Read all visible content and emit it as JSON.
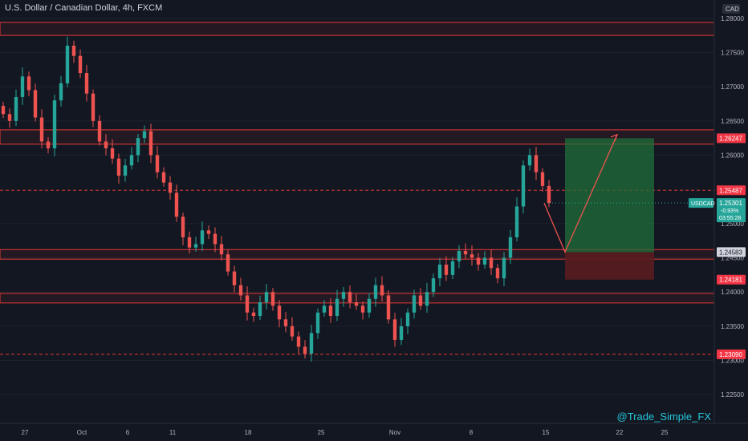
{
  "header": {
    "title": "U.S. Dollar / Canadian Dollar, 4h, FXCM"
  },
  "currency": "CAD",
  "watermark": "@Trade_Simple_FX",
  "colors": {
    "background": "#131722",
    "axis_text": "#b2b5be",
    "up_candle": "#26a69a",
    "down_candle": "#ef5350",
    "zone_line": "#e53935",
    "target_zone": "#1f6f3a",
    "stop_zone": "#5a1c1f",
    "current_badge": "#26a69a",
    "level_badge": "#f23645"
  },
  "price_axis": {
    "ticks": [
      "1.28000",
      "1.27500",
      "1.27000",
      "1.26500",
      "1.26000",
      "1.25000",
      "1.24500",
      "1.24000",
      "1.23500",
      "1.23000",
      "1.22500"
    ],
    "range": [
      1.2235,
      1.2815
    ]
  },
  "time_axis": {
    "labels": [
      "27",
      "Oct",
      "6",
      "11",
      "18",
      "25",
      "Nov",
      "8",
      "15",
      "22",
      "25"
    ]
  },
  "levels": [
    {
      "label": "1.26247",
      "value": 1.26247,
      "style": "solid",
      "badge": "red"
    },
    {
      "label": "1.25487",
      "value": 1.25487,
      "style": "dashed",
      "badge": "red"
    },
    {
      "label": "1.24583",
      "value": 1.24583,
      "style": "solid",
      "badge": "grey"
    },
    {
      "label": "1.24181",
      "value": 1.24181,
      "style": "zone",
      "badge": "red"
    },
    {
      "label": "1.23090",
      "value": 1.2309,
      "style": "dashed",
      "badge": "red"
    }
  ],
  "zones": [
    {
      "name": "resistance-top",
      "from": 1.2775,
      "to": 1.2794
    },
    {
      "name": "resistance-mid",
      "from": 1.2616,
      "to": 1.2637
    },
    {
      "name": "support-mid",
      "from": 1.2448,
      "to": 1.2462
    },
    {
      "name": "support-low",
      "from": 1.2384,
      "to": 1.2398
    }
  ],
  "current_price": {
    "symbol": "USDCAD",
    "price": "1.25301",
    "change": "-0.93%",
    "countdown": "03:55:28",
    "value": 1.25301
  },
  "position": {
    "entry": 1.24583,
    "target": 1.26247,
    "stop": 1.24181
  },
  "projection": [
    {
      "price": 1.253
    },
    {
      "price": 1.24583
    },
    {
      "price": 1.263
    }
  ],
  "chart_data": {
    "type": "candlestick",
    "title": "U.S. Dollar / Canadian Dollar, 4h, FXCM",
    "ylim": [
      1.2235,
      1.2815
    ],
    "close_path": [
      1.266,
      1.265,
      1.2685,
      1.2715,
      1.2695,
      1.2655,
      1.262,
      1.261,
      1.268,
      1.2705,
      1.276,
      1.2745,
      1.272,
      1.269,
      1.265,
      1.262,
      1.261,
      1.2595,
      1.257,
      1.2585,
      1.26,
      1.2625,
      1.2635,
      1.26,
      1.2575,
      1.256,
      1.2545,
      1.251,
      1.248,
      1.2465,
      1.247,
      1.249,
      1.2485,
      1.247,
      1.2455,
      1.243,
      1.241,
      1.2395,
      1.237,
      1.2365,
      1.2385,
      1.24,
      1.238,
      1.236,
      1.235,
      1.2335,
      1.232,
      1.231,
      1.234,
      1.237,
      1.238,
      1.2365,
      1.239,
      1.24,
      1.2385,
      1.238,
      1.237,
      1.239,
      1.241,
      1.2395,
      1.236,
      1.233,
      1.235,
      1.237,
      1.2395,
      1.238,
      1.24,
      1.242,
      1.244,
      1.2425,
      1.2445,
      1.246,
      1.2455,
      1.245,
      1.244,
      1.245,
      1.2435,
      1.242,
      1.245,
      1.248,
      1.2525,
      1.2585,
      1.26,
      1.2575,
      1.2555,
      1.253
    ]
  }
}
